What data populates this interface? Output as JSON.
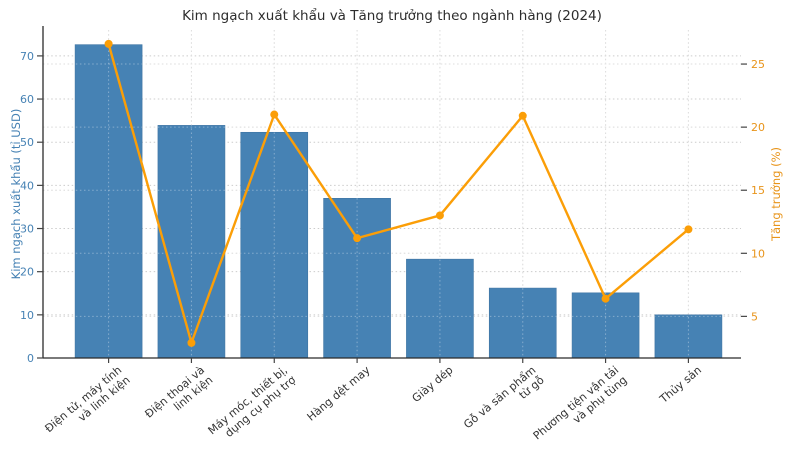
{
  "chart_data": {
    "type": "combo",
    "title": "Kim ngạch xuất khẩu và Tăng trưởng theo ngành hàng (2024)",
    "categories": [
      "Điện tử, máy tính\nvà linh kiện",
      "Điện thoại và\nlinh kiện",
      "Máy móc, thiết bị,\ndụng cụ phụ trợ",
      "Hàng dệt may",
      "Giày dép",
      "Gỗ và sản phẩm\ntừ gỗ",
      "Phương tiện vận tải\nvà phụ tùng",
      "Thủy sản"
    ],
    "series": [
      {
        "name": "Kim ngạch xuất khẩu",
        "type": "bar",
        "axis": "left",
        "values": [
          72.6,
          53.9,
          52.3,
          37.0,
          22.9,
          16.2,
          15.1,
          10.0
        ]
      },
      {
        "name": "Tăng trưởng",
        "type": "line",
        "axis": "right",
        "values": [
          26.6,
          2.9,
          21.0,
          11.2,
          13.0,
          20.9,
          6.4,
          11.9
        ]
      }
    ],
    "left_axis": {
      "label": "Kim ngạch xuất khẩu (tỉ USD)",
      "ticks": [
        0,
        10,
        20,
        30,
        40,
        50,
        60,
        70
      ],
      "range": [
        0,
        76
      ]
    },
    "right_axis": {
      "label": "Tăng trưởng (%)",
      "ticks": [
        5,
        10,
        15,
        20,
        25
      ],
      "range": [
        1.7,
        27.7
      ]
    },
    "grid": "dotted-both-axes",
    "legend": "none"
  },
  "colors": {
    "bar": "#4682B4",
    "bar_edge": "#3E74A3",
    "line": "#FB9E07",
    "marker": "#FB9E07",
    "left_text": "#4682B4",
    "right_text": "#E8941A",
    "title": "#2d2d2d",
    "xtick_text": "#333333",
    "grid": "#cccccc",
    "spine": "#2b2b2b",
    "tick_mark": "#444444"
  }
}
